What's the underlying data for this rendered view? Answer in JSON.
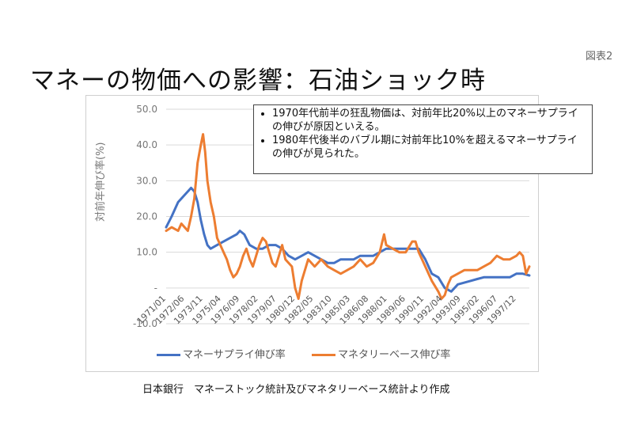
{
  "slide": {
    "figure_label": "図表2",
    "title": "マネーの物価への影響：石油ショック時",
    "source": "日本銀行　マネーストック統計及びマネタリーベース統計より作成"
  },
  "note": {
    "bullets": [
      "1970年代前半の狂乱物価は、対前年比20%以上のマネーサプライの伸びが原因といえる。",
      "1980年代後半のバブル期に対前年比10%を超えるマネーサプライの伸びが見られた。"
    ]
  },
  "colors": {
    "money_supply": "#4472C4",
    "monetary_base": "#ED7D31"
  },
  "chart_data": {
    "type": "line",
    "ylabel": "対前年伸び率(%)",
    "ylim": [
      -10,
      50
    ],
    "yticks": [
      -10,
      0,
      10,
      20,
      30,
      40,
      50
    ],
    "ytick_labels": [
      "-10.0",
      "-",
      "10.0",
      "20.0",
      "30.0",
      "40.0",
      "50.0"
    ],
    "x_range": [
      "1971/01",
      "1998/12"
    ],
    "x_tick_labels": [
      "1971/01",
      "1972/06",
      "1973/11",
      "1975/04",
      "1976/09",
      "1978/02",
      "1979/07",
      "1980/12",
      "1982/05",
      "1983/10",
      "1985/03",
      "1986/08",
      "1988/01",
      "1989/06",
      "1990/11",
      "1992/04",
      "1993/09",
      "1995/02",
      "1996/07",
      "1997/12"
    ],
    "grid": true,
    "legend": "bottom",
    "series": [
      {
        "name": "マネーサプライ伸び率",
        "color": "#4472C4",
        "points": [
          [
            "1971/01",
            17
          ],
          [
            "1971/06",
            20
          ],
          [
            "1971/12",
            24
          ],
          [
            "1972/06",
            26
          ],
          [
            "1972/12",
            28
          ],
          [
            "1973/03",
            27
          ],
          [
            "1973/06",
            24
          ],
          [
            "1973/09",
            19
          ],
          [
            "1973/12",
            15
          ],
          [
            "1974/03",
            12
          ],
          [
            "1974/06",
            11
          ],
          [
            "1974/12",
            12
          ],
          [
            "1975/06",
            13
          ],
          [
            "1975/12",
            14
          ],
          [
            "1976/06",
            15
          ],
          [
            "1976/09",
            16
          ],
          [
            "1977/01",
            15
          ],
          [
            "1977/06",
            12
          ],
          [
            "1977/12",
            11
          ],
          [
            "1978/06",
            11
          ],
          [
            "1978/12",
            12
          ],
          [
            "1979/06",
            12
          ],
          [
            "1979/12",
            11
          ],
          [
            "1980/06",
            9
          ],
          [
            "1980/12",
            8
          ],
          [
            "1981/06",
            9
          ],
          [
            "1981/12",
            10
          ],
          [
            "1982/06",
            9
          ],
          [
            "1982/12",
            8
          ],
          [
            "1983/06",
            7
          ],
          [
            "1983/12",
            7
          ],
          [
            "1984/06",
            8
          ],
          [
            "1984/12",
            8
          ],
          [
            "1985/06",
            8
          ],
          [
            "1985/12",
            9
          ],
          [
            "1986/06",
            9
          ],
          [
            "1986/12",
            9
          ],
          [
            "1987/06",
            10
          ],
          [
            "1987/12",
            11
          ],
          [
            "1988/06",
            11
          ],
          [
            "1988/12",
            11
          ],
          [
            "1989/06",
            11
          ],
          [
            "1989/12",
            11
          ],
          [
            "1990/06",
            11
          ],
          [
            "1990/12",
            8
          ],
          [
            "1991/06",
            4
          ],
          [
            "1991/12",
            3
          ],
          [
            "1992/06",
            0
          ],
          [
            "1992/12",
            -1
          ],
          [
            "1993/06",
            1
          ],
          [
            "1993/12",
            1.5
          ],
          [
            "1994/06",
            2
          ],
          [
            "1994/12",
            2.5
          ],
          [
            "1995/06",
            3
          ],
          [
            "1995/12",
            3
          ],
          [
            "1996/06",
            3
          ],
          [
            "1996/12",
            3
          ],
          [
            "1997/06",
            3
          ],
          [
            "1997/12",
            4
          ],
          [
            "1998/06",
            4
          ],
          [
            "1998/12",
            3.5
          ]
        ]
      },
      {
        "name": "マネタリーベース伸び率",
        "color": "#ED7D31",
        "points": [
          [
            "1971/01",
            16
          ],
          [
            "1971/06",
            17
          ],
          [
            "1971/12",
            16
          ],
          [
            "1972/03",
            18
          ],
          [
            "1972/06",
            17
          ],
          [
            "1972/09",
            16
          ],
          [
            "1972/12",
            20
          ],
          [
            "1973/03",
            25
          ],
          [
            "1973/06",
            35
          ],
          [
            "1973/09",
            40
          ],
          [
            "1973/11",
            43
          ],
          [
            "1974/01",
            38
          ],
          [
            "1974/03",
            30
          ],
          [
            "1974/06",
            24
          ],
          [
            "1974/09",
            20
          ],
          [
            "1974/12",
            14
          ],
          [
            "1975/03",
            12
          ],
          [
            "1975/06",
            10
          ],
          [
            "1975/09",
            8
          ],
          [
            "1975/12",
            5
          ],
          [
            "1976/03",
            3
          ],
          [
            "1976/06",
            4
          ],
          [
            "1976/09",
            6
          ],
          [
            "1976/12",
            9
          ],
          [
            "1977/03",
            11
          ],
          [
            "1977/06",
            8
          ],
          [
            "1977/09",
            6
          ],
          [
            "1977/12",
            9
          ],
          [
            "1978/03",
            12
          ],
          [
            "1978/06",
            14
          ],
          [
            "1978/09",
            13
          ],
          [
            "1978/12",
            10
          ],
          [
            "1979/03",
            7
          ],
          [
            "1979/06",
            6
          ],
          [
            "1979/09",
            9
          ],
          [
            "1979/12",
            12
          ],
          [
            "1980/03",
            8
          ],
          [
            "1980/06",
            7
          ],
          [
            "1980/09",
            6
          ],
          [
            "1980/12",
            0
          ],
          [
            "1981/03",
            -3
          ],
          [
            "1981/06",
            2
          ],
          [
            "1981/12",
            8
          ],
          [
            "1982/06",
            6
          ],
          [
            "1982/12",
            8
          ],
          [
            "1983/06",
            6
          ],
          [
            "1983/12",
            5
          ],
          [
            "1984/06",
            4
          ],
          [
            "1984/12",
            5
          ],
          [
            "1985/06",
            6
          ],
          [
            "1985/12",
            8
          ],
          [
            "1986/06",
            6
          ],
          [
            "1986/12",
            7
          ],
          [
            "1987/06",
            10
          ],
          [
            "1987/10",
            15
          ],
          [
            "1987/12",
            12
          ],
          [
            "1988/06",
            11
          ],
          [
            "1988/12",
            10
          ],
          [
            "1989/06",
            10
          ],
          [
            "1989/12",
            13
          ],
          [
            "1990/03",
            13
          ],
          [
            "1990/06",
            10
          ],
          [
            "1990/09",
            8
          ],
          [
            "1990/12",
            6
          ],
          [
            "1991/06",
            2
          ],
          [
            "1991/12",
            -1
          ],
          [
            "1992/03",
            -3
          ],
          [
            "1992/06",
            -2
          ],
          [
            "1992/09",
            1
          ],
          [
            "1992/12",
            3
          ],
          [
            "1993/06",
            4
          ],
          [
            "1993/12",
            5
          ],
          [
            "1994/06",
            5
          ],
          [
            "1994/12",
            5
          ],
          [
            "1995/06",
            6
          ],
          [
            "1995/12",
            7
          ],
          [
            "1996/06",
            9
          ],
          [
            "1996/12",
            8
          ],
          [
            "1997/06",
            8
          ],
          [
            "1997/12",
            9
          ],
          [
            "1998/03",
            10
          ],
          [
            "1998/06",
            9
          ],
          [
            "1998/09",
            4
          ],
          [
            "1998/12",
            6
          ]
        ]
      }
    ]
  }
}
